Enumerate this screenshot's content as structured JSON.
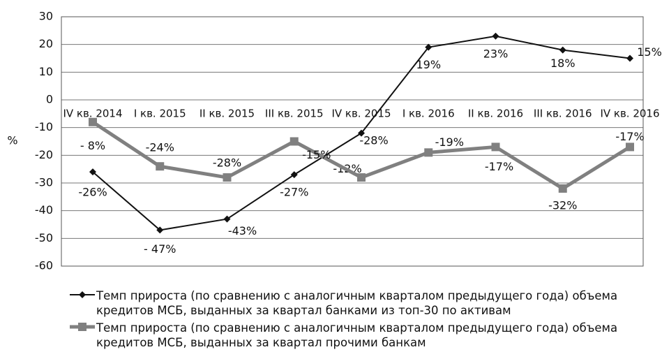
{
  "chart_data": {
    "type": "line",
    "y_label": "%",
    "categories": [
      "IV кв. 2014",
      "I кв. 2015",
      "II кв. 2015",
      "III кв. 2015",
      "IV кв. 2015",
      "I кв. 2016",
      "II кв. 2016",
      "III кв. 2016",
      "IV кв. 2016"
    ],
    "series": [
      {
        "name": "Темп прироста (по сравнению с аналогичным кварталом предыдущего года) объема кредитов МСБ, выданных за квартал банками из топ-30 по активам",
        "color": "#111111",
        "values": [
          -26,
          -47,
          -43,
          -27,
          -12,
          19,
          23,
          18,
          15
        ],
        "value_labels": [
          "-26%",
          "- 47%",
          "-43%",
          "-27%",
          "-12%",
          "19%",
          "23%",
          "18%",
          "15%"
        ]
      },
      {
        "name": "Темп прироста (по сравнению с аналогичным кварталом предыдущего года) объема кредитов МСБ, выданных за квартал прочими банкам",
        "color": "#808080",
        "values": [
          -8,
          -24,
          -28,
          -15,
          -28,
          -19,
          -17,
          -32,
          -17
        ],
        "value_labels": [
          "- 8%",
          "-24%",
          "-28%",
          "-15%",
          "-28%",
          "-19%",
          "-17%",
          "-32%",
          "-17%"
        ]
      }
    ],
    "ylim": [
      -60,
      30
    ],
    "yticks": [
      -60,
      -50,
      -40,
      -30,
      -20,
      -10,
      0,
      10,
      20,
      30
    ],
    "grid": true
  }
}
